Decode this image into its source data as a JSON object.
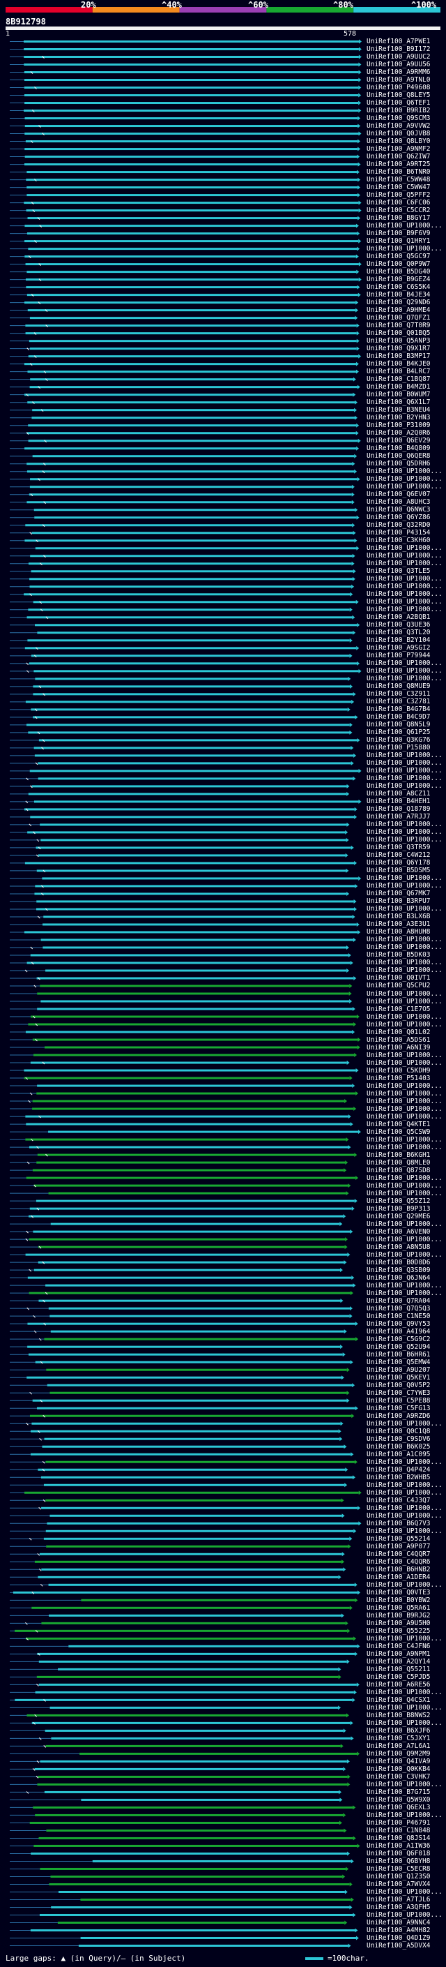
{
  "legend": {
    "ticks": [
      "20%",
      "^40%",
      "^60%",
      "^80%",
      "^100%"
    ],
    "colors": [
      "#e4002b",
      "#f48a1f",
      "#9b3fb5",
      "#18a832",
      "#2cc6d6"
    ]
  },
  "query": {
    "id": "8B912798",
    "start": "1",
    "end": "578"
  },
  "hits": [
    "UniRef100_A7PWE1",
    "UniRef100_B9I172",
    "UniRef100_A9UUC2",
    "UniRef100_A9UU56",
    "UniRef100_A9RMM6",
    "UniRef100_A9TNL0",
    "UniRef100_P49608",
    "UniRef100_Q8LEY5",
    "UniRef100_Q6TEF1",
    "UniRef100_B9RIB2",
    "UniRef100_Q9SCM3",
    "UniRef100_A9VVW2",
    "UniRef100_Q0JVB8",
    "UniRef100_Q8LBY0",
    "UniRef100_A9NMF2",
    "UniRef100_Q6ZIW7",
    "UniRef100_A9RT25",
    "UniRef100_B6TNR0",
    "UniRef100_C5WW48",
    "UniRef100_C5WW47",
    "UniRef100_Q5PFF2",
    "UniRef100_C6FC06",
    "UniRef100_C5CCR2",
    "UniRef100_B8GY17",
    "UniRef100_UP1000...",
    "UniRef100_B9F6V9",
    "UniRef100_Q1HRY1",
    "UniRef100_UP1000...",
    "UniRef100_Q5GC97",
    "UniRef100_Q0P9W7",
    "UniRef100_B5DG40",
    "UniRef100_B9GEZ4",
    "UniRef100_C6S5K4",
    "UniRef100_B4JE34",
    "UniRef100_Q29ND6",
    "UniRef100_A9HME4",
    "UniRef100_Q7QFZ1",
    "UniRef100_Q7T0R9",
    "UniRef100_Q01BQ5",
    "UniRef100_Q5ANP3",
    "UniRef100_Q9X1R7",
    "UniRef100_B3MP17",
    "UniRef100_B4KJE0",
    "UniRef100_B4LRC7",
    "UniRef100_C1BQ87",
    "UniRef100_B4MZD1",
    "UniRef100_B0WUM7",
    "UniRef100_Q6X1L7",
    "UniRef100_B3NEU4",
    "UniRef100_B2YHN3",
    "UniRef100_P31009",
    "UniRef100_A2Q0R6",
    "UniRef100_Q6EV29",
    "UniRef100_B4Q809",
    "UniRef100_Q6QER8",
    "UniRef100_Q5DRH6",
    "UniRef100_UP1000...",
    "UniRef100_UP1000...",
    "UniRef100_UP1000...",
    "UniRef100_Q6EV07",
    "UniRef100_A8UHC3",
    "UniRef100_Q6NWC3",
    "UniRef100_Q6YZ86",
    "UniRef100_Q32RD0",
    "UniRef100_P43154",
    "UniRef100_C3KH60",
    "UniRef100_UP1000...",
    "UniRef100_UP1000...",
    "UniRef100_UP1000...",
    "UniRef100_Q3TLE5",
    "UniRef100_UP1000...",
    "UniRef100_UP1000...",
    "UniRef100_UP1000...",
    "UniRef100_UP1000...",
    "UniRef100_UP1000...",
    "UniRef100_A2BQB1",
    "UniRef100_Q3UE36",
    "UniRef100_Q3TL20",
    "UniRef100_B2Y104",
    "UniRef100_A9SGI2",
    "UniRef100_P79944",
    "UniRef100_UP1000...",
    "UniRef100_UP1000...",
    "UniRef100_UP1000...",
    "UniRef100_Q8MUE9",
    "UniRef100_C3Z911",
    "UniRef100_C3Z781",
    "UniRef100_B4G7B4",
    "UniRef100_B4C9D7",
    "UniRef100_Q8N5L9",
    "UniRef100_Q61P25",
    "UniRef100_Q3KG76",
    "UniRef100_P15880",
    "UniRef100_UP1000...",
    "UniRef100_UP1000...",
    "UniRef100_UP1000...",
    "UniRef100_UP1000...",
    "UniRef100_UP1000...",
    "UniRef100_A8CZ11",
    "UniRef100_B4HEH1",
    "UniRef100_Q18789",
    "UniRef100_A7RJJ7",
    "UniRef100_UP1000...",
    "UniRef100_UP1000...",
    "UniRef100_UP1000...",
    "UniRef100_Q3TR59",
    "UniRef100_C4W212",
    "UniRef100_Q6Y178",
    "UniRef100_B5DSM5",
    "UniRef100_UP1000...",
    "UniRef100_UP1000...",
    "UniRef100_Q67MK7",
    "UniRef100_B3RPU7",
    "UniRef100_UP1000...",
    "UniRef100_B3LX6B",
    "UniRef100_A3E3U1",
    "UniRef100_A8HUH8",
    "UniRef100_UP1000...",
    "UniRef100_UP1000...",
    "UniRef100_B5DK03",
    "UniRef100_UP1000...",
    "UniRef100_UP1000...",
    "UniRef100_Q0IVT1",
    "UniRef100_Q5CPU2",
    "UniRef100_UP1000...",
    "UniRef100_UP1000...",
    "UniRef100_C1E7O5",
    "UniRef100_UP1000...",
    "UniRef100_UP1000...",
    "UniRef100_Q01L02",
    "UniRef100_A5DS61",
    "UniRef100_A6NI39",
    "UniRef100_UP1000...",
    "UniRef100_UP1000...",
    "UniRef100_C5KDH9",
    "UniRef100_P51403",
    "UniRef100_UP1000...",
    "UniRef100_UP1000...",
    "UniRef100_UP1000...",
    "UniRef100_UP1000...",
    "UniRef100_UP1000...",
    "UniRef100_Q4KTE1",
    "UniRef100_Q5CSW9",
    "UniRef100_UP1000...",
    "UniRef100_UP1000...",
    "UniRef100_B6KGH1",
    "UniRef100_Q8MLE0",
    "UniRef100_Q87SD8",
    "UniRef100_UP1000...",
    "UniRef100_UP1000...",
    "UniRef100_UP1000...",
    "UniRef100_Q55Z12",
    "UniRef100_B9P313",
    "UniRef100_Q29ME6",
    "UniRef100_UP1000...",
    "UniRef100_A6VEN0",
    "UniRef100_UP1000...",
    "UniRef100_A8N5U8",
    "UniRef100_UP1000...",
    "UniRef100_B0D0D6",
    "UniRef100_Q3SB09",
    "UniRef100_Q6JN64",
    "UniRef100_UP1000...",
    "UniRef100_UP1000...",
    "UniRef100_Q7RA04",
    "UniRef100_Q7Q5Q3",
    "UniRef100_C1NE50",
    "UniRef100_Q9VY53",
    "UniRef100_A4I964",
    "UniRef100_C5G9C2",
    "UniRef100_Q52U94",
    "UniRef100_B6HR61",
    "UniRef100_Q5EMW4",
    "UniRef100_A9U207",
    "UniRef100_Q5KEV1",
    "UniRef100_Q0V5P2",
    "UniRef100_C7YWE3",
    "UniRef100_C5PE88",
    "UniRef100_C5FG13",
    "UniRef100_A9RZD6",
    "UniRef100_UP1000...",
    "UniRef100_Q0C1Q8",
    "UniRef100_C9SDV6",
    "UniRef100_B6K025",
    "UniRef100_A1C095",
    "UniRef100_UP1000...",
    "UniRef100_Q4P424",
    "UniRef100_B2WHB5",
    "UniRef100_UP1000...",
    "UniRef100_UP1000...",
    "UniRef100_C4J3Q7",
    "UniRef100_UP1000...",
    "UniRef100_UP1000...",
    "UniRef100_B6Q7V3",
    "UniRef100_UP1000...",
    "UniRef100_Q55214",
    "UniRef100_A9P077",
    "UniRef100_C4QQR7",
    "UniRef100_C4QQR6",
    "UniRef100_B6HNB2",
    "UniRef100_A1DER4",
    "UniRef100_UP1000...",
    "UniRef100_Q0VTE3",
    "UniRef100_B0YBW2",
    "UniRef100_Q5RA61",
    "UniRef100_B9RJG2",
    "UniRef100_A9U5H0",
    "UniRef100_Q55225",
    "UniRef100_UP1000...",
    "UniRef100_C4JFN6",
    "UniRef100_A9NPM1",
    "UniRef100_A2QY14",
    "UniRef100_Q55211",
    "UniRef100_C5PJD5",
    "UniRef100_A6RE56",
    "UniRef100_UP1000...",
    "UniRef100_Q4CSX1",
    "UniRef100_UP1000...",
    "UniRef100_B8NWS2",
    "UniRef100_UP1000...",
    "UniRef100_B6XJF6",
    "UniRef100_C5JXY1",
    "UniRef100_A7L6A1",
    "UniRef100_Q9M2M9",
    "UniRef100_Q4IVA9",
    "UniRef100_Q0KKB4",
    "UniRef100_C3VHK7",
    "UniRef100_UP1000...",
    "UniRef100_B7G715",
    "UniRef100_Q5W9X0",
    "UniRef100_Q6EXL3",
    "UniRef100_UP1000...",
    "UniRef100_P46791",
    "UniRef100_C1N848",
    "UniRef100_Q8JS14",
    "UniRef100_A1IW36",
    "UniRef100_Q6F018",
    "UniRef100_Q6BYH8",
    "UniRef100_C5ECR8",
    "UniRef100_Q1Z3S0",
    "UniRef100_A7WVX4",
    "UniRef100_UP1000...",
    "UniRef100_A7TJL6",
    "UniRef100_A3QFH5",
    "UniRef100_UP1000...",
    "UniRef100_A9NNC4",
    "UniRef100_A4MH82",
    "UniRef100_Q4D1Z9",
    "UniRef100_A5DVX4"
  ],
  "footer": {
    "gap_text": "Large gaps: ▲ (in Query)/– (in Subject)",
    "scale_text": "=100char."
  }
}
